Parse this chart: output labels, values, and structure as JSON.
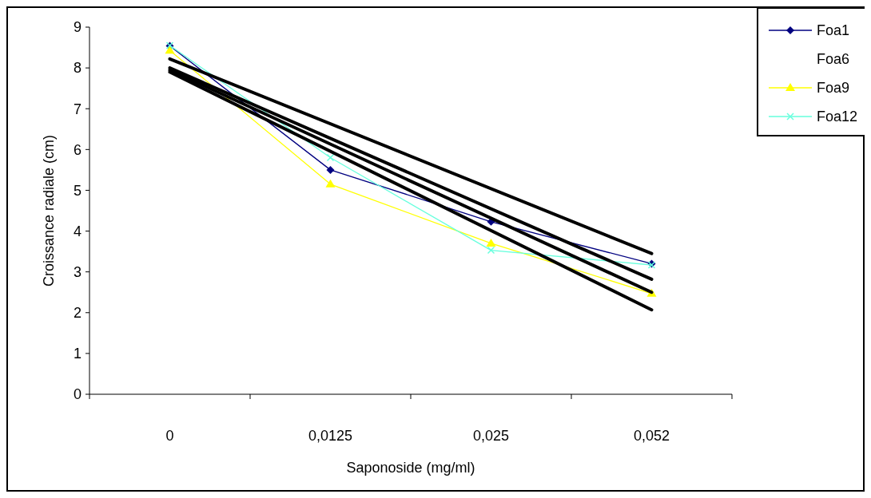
{
  "chart_data": {
    "type": "line",
    "xlabel": "Saponoside (mg/ml)",
    "ylabel": "Croissance radiale (cm)",
    "categories": [
      "0",
      "0,0125",
      "0,025",
      "0,052"
    ],
    "ylim": [
      0,
      9
    ],
    "yticks": [
      0,
      1,
      2,
      3,
      4,
      5,
      6,
      7,
      8,
      9
    ],
    "grid": false,
    "legend": "top right",
    "series": [
      {
        "name": "Foa1",
        "color": "#000080",
        "marker": "diamond",
        "values": [
          8.54,
          5.5,
          4.23,
          3.2
        ]
      },
      {
        "name": "Foa6",
        "marker": "none",
        "values": [
          null,
          null,
          null,
          null
        ]
      },
      {
        "name": "Foa9",
        "color": "#ffff00",
        "marker": "triangle",
        "values": [
          8.43,
          5.15,
          3.7,
          2.47
        ]
      },
      {
        "name": "Foa12",
        "color": "#66ffdd",
        "marker": "cross",
        "values": [
          8.55,
          5.8,
          3.53,
          3.17
        ]
      },
      {
        "type": "line",
        "color": "#000000",
        "marker": "none",
        "x": [
          "0",
          "0,052"
        ],
        "values": [
          8.22,
          3.45
        ]
      },
      {
        "type": "line",
        "color": "#000000",
        "marker": "none",
        "x": [
          "0",
          "0,052"
        ],
        "values": [
          8.0,
          2.82
        ]
      },
      {
        "type": "line",
        "color": "#000000",
        "marker": "none",
        "x": [
          "0",
          "0,052"
        ],
        "values": [
          7.95,
          2.5
        ]
      },
      {
        "type": "line",
        "color": "#000000",
        "marker": "none",
        "x": [
          "0",
          "0,052"
        ],
        "values": [
          7.9,
          2.07
        ]
      }
    ]
  }
}
